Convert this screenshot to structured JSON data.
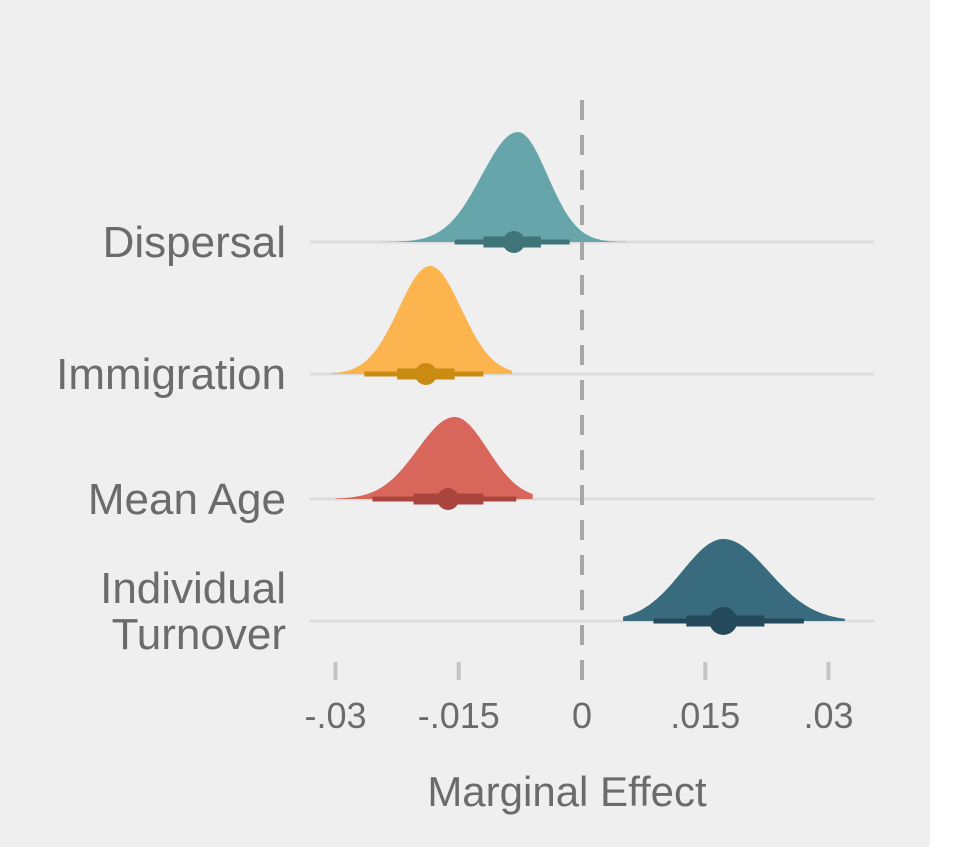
{
  "chart_data": {
    "type": "halfeye",
    "xlabel": "Marginal Effect",
    "xlim": [
      -0.031,
      0.0355
    ],
    "xticks": [
      {
        "value": -0.03,
        "label": "-.03"
      },
      {
        "value": -0.015,
        "label": "-.015"
      },
      {
        "value": 0,
        "label": "0"
      },
      {
        "value": 0.015,
        "label": ".015"
      },
      {
        "value": 0.03,
        "label": ".03"
      }
    ],
    "reference_line": 0,
    "categories": [
      {
        "name": "Dispersal",
        "label_lines": [
          "Dispersal"
        ],
        "color": "#66a6ab",
        "point_color": "#3f7478",
        "point_est": -0.0083,
        "inner_interval": [
          -0.012,
          -0.005
        ],
        "outer_interval": [
          -0.0155,
          -0.0015
        ],
        "density_range": [
          -0.0245,
          0.0055
        ],
        "density_peak": -0.0078,
        "spread_left": 0.0044,
        "spread_right": 0.0036
      },
      {
        "name": "Immigration",
        "label_lines": [
          "Immigration"
        ],
        "color": "#fcb54e",
        "point_color": "#c98b12",
        "point_est": -0.019,
        "inner_interval": [
          -0.0225,
          -0.0155
        ],
        "outer_interval": [
          -0.0265,
          -0.012
        ],
        "density_range": [
          -0.0305,
          -0.0085
        ],
        "density_peak": -0.0185,
        "spread_left": 0.0038,
        "spread_right": 0.0038
      },
      {
        "name": "Mean Age",
        "label_lines": [
          "Mean Age"
        ],
        "color": "#d9665a",
        "point_color": "#a9453c",
        "point_est": -0.0163,
        "inner_interval": [
          -0.0205,
          -0.012
        ],
        "outer_interval": [
          -0.0255,
          -0.008
        ],
        "density_range": [
          -0.03,
          -0.006
        ],
        "density_peak": -0.0155,
        "spread_left": 0.0045,
        "spread_right": 0.004
      },
      {
        "name": "Individual Turnover",
        "label_lines": [
          "Individual",
          "Turnover"
        ],
        "color": "#386b7e",
        "point_color": "#24495a",
        "point_est": 0.0172,
        "inner_interval": [
          0.0127,
          0.0222
        ],
        "outer_interval": [
          0.0087,
          0.027
        ],
        "density_range": [
          0.005,
          0.032
        ],
        "density_peak": 0.0172,
        "spread_left": 0.005,
        "spread_right": 0.0055
      }
    ],
    "grid": {
      "horizontal": true,
      "vertical": false
    },
    "gridline_color": "#dcdcdc",
    "reference_line_color": "#a6a6a6",
    "tick_color": "#c4c4c4"
  }
}
